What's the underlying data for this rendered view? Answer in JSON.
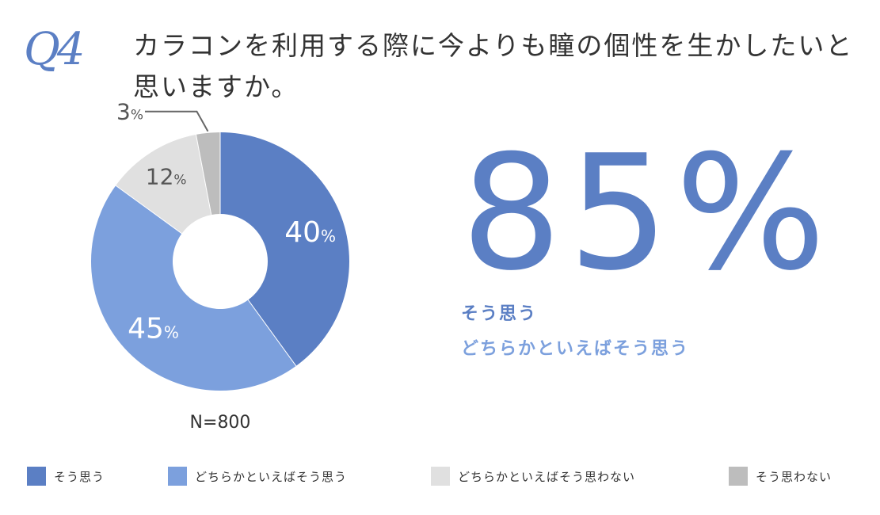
{
  "header": {
    "q_label": "Q4",
    "question": "カラコンを利用する際に今よりも瞳の個性を生かしたいと思いますか。"
  },
  "highlight": {
    "value": "85%",
    "line1": "そう思う",
    "line2": "どちらかといえばそう思う"
  },
  "colors": {
    "yes": "#5b7fc4",
    "somewhat_yes": "#7ca0dd",
    "somewhat_no": "#e0e0e0",
    "no": "#bdbdbd"
  },
  "chart_data": {
    "type": "pie",
    "donut": true,
    "sample_size": "N=800",
    "unit": "%",
    "categories": [
      "そう思う",
      "どちらかといえばそう思う",
      "どちらかといえばそう思わない",
      "そう思わない"
    ],
    "values": [
      40,
      45,
      12,
      3
    ],
    "legend_position": "bottom"
  }
}
